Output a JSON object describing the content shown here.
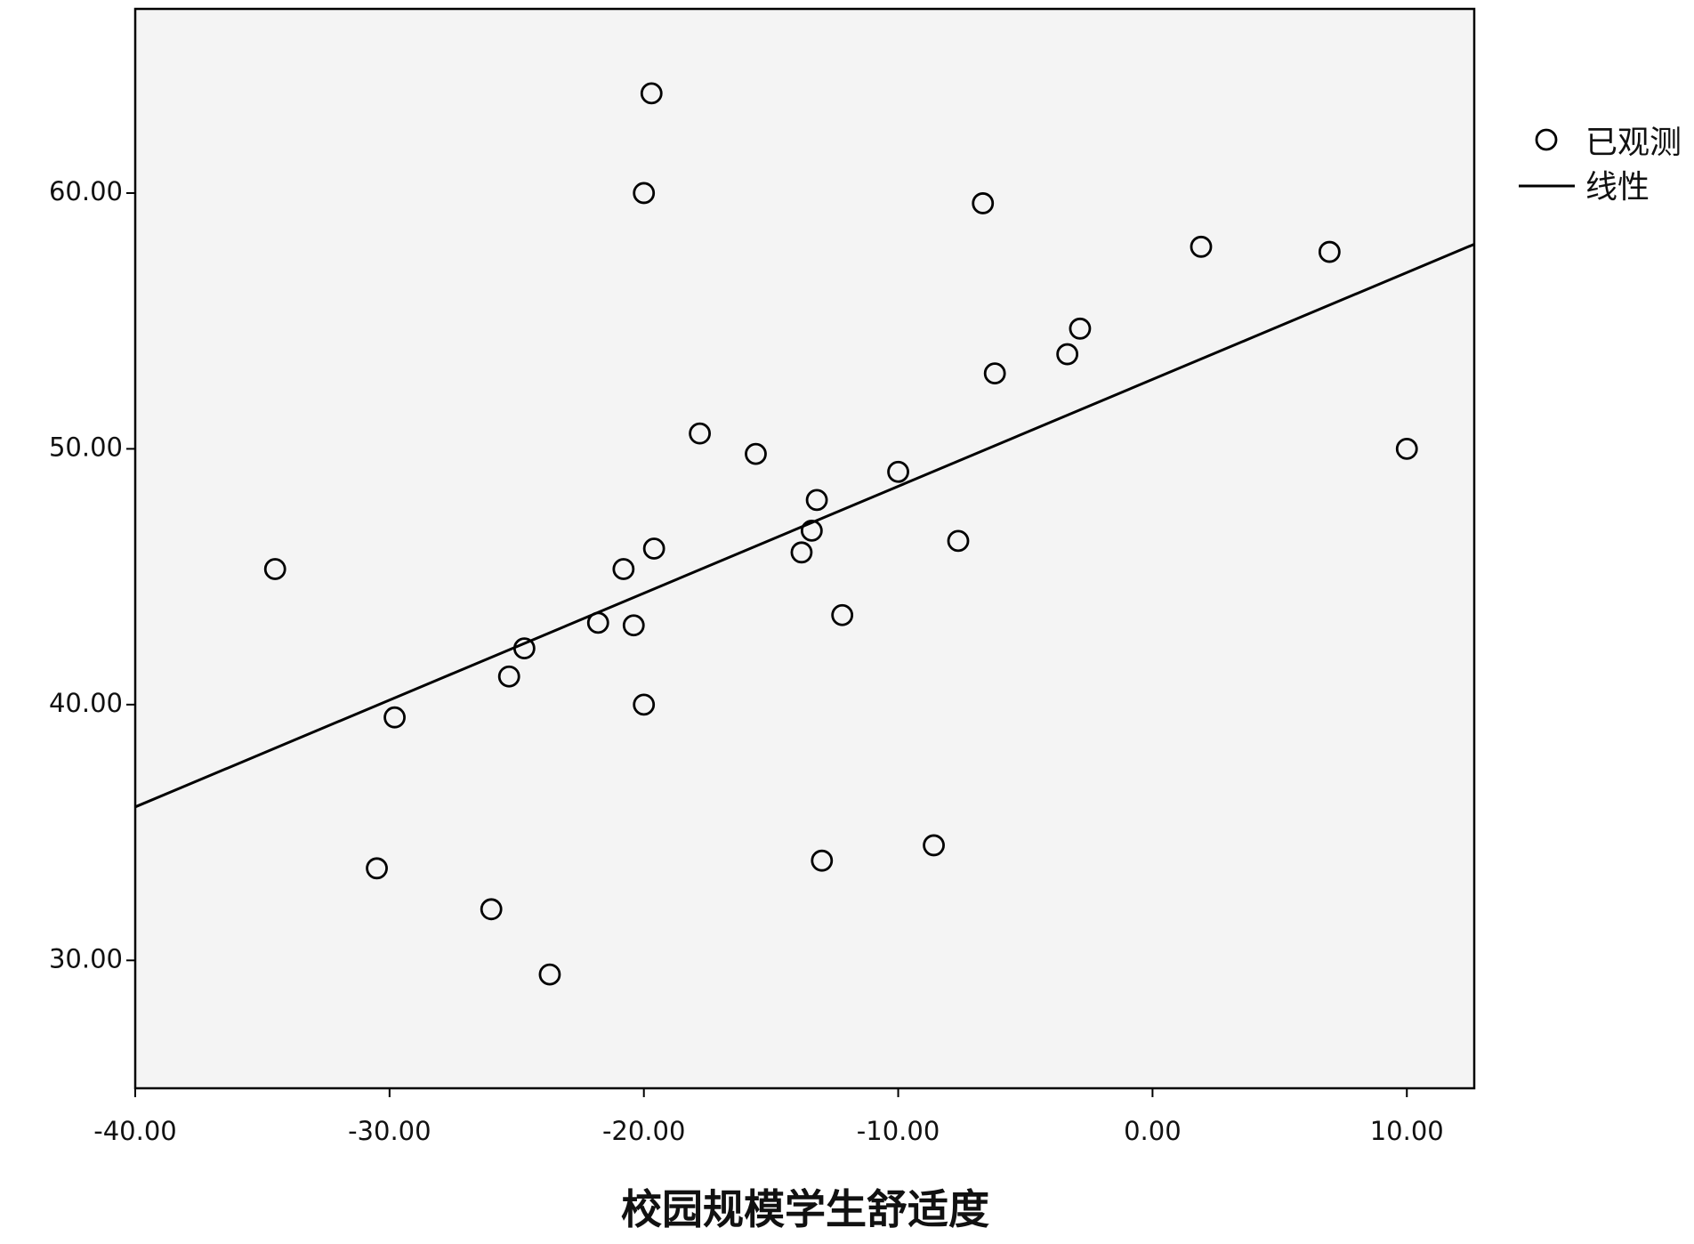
{
  "chart_data": {
    "type": "scatter",
    "x_label": "校园规模学生舒适度",
    "xlim": [
      -40,
      12.65
    ],
    "ylim": [
      25.0,
      67.2
    ],
    "xticks": [
      {
        "value": -40,
        "label": "-40.00"
      },
      {
        "value": -30,
        "label": "-30.00"
      },
      {
        "value": -20,
        "label": "-20.00"
      },
      {
        "value": -10,
        "label": "-10.00"
      },
      {
        "value": 0,
        "label": "0.00"
      },
      {
        "value": 10,
        "label": "10.00"
      }
    ],
    "yticks": [
      {
        "value": 30,
        "label": "30.00"
      },
      {
        "value": 40,
        "label": "40.00"
      },
      {
        "value": 50,
        "label": "50.00"
      },
      {
        "value": 60,
        "label": "60.00"
      }
    ],
    "series": [
      {
        "name": "已观测",
        "color": "#000000",
        "x": [
          -19.7,
          -20.0,
          -6.67,
          1.91,
          6.96,
          -2.85,
          -3.35,
          -6.2,
          -17.8,
          -15.6,
          10.0,
          -10.0,
          -13.2,
          -13.4,
          -7.64,
          -19.6,
          -13.8,
          -20.8,
          -34.5,
          -21.8,
          -20.4,
          -12.2,
          -24.7,
          -25.3,
          -20.0,
          -29.8,
          -8.6,
          -30.5,
          -13.0,
          -26.0,
          -23.7
        ],
        "values": [
          63.9,
          60.0,
          59.6,
          57.9,
          57.7,
          54.7,
          53.7,
          52.95,
          50.6,
          49.8,
          50.0,
          49.1,
          48.0,
          46.8,
          46.4,
          46.1,
          45.95,
          45.3,
          45.3,
          43.2,
          43.1,
          43.5,
          42.2,
          41.1,
          40.0,
          39.5,
          34.5,
          33.6,
          33.9,
          32.0,
          29.45
        ]
      },
      {
        "name": "线性",
        "color": "#000000",
        "x": [
          -40,
          12.65
        ],
        "values": [
          36.0,
          58.0
        ]
      }
    ],
    "legend": "right"
  }
}
